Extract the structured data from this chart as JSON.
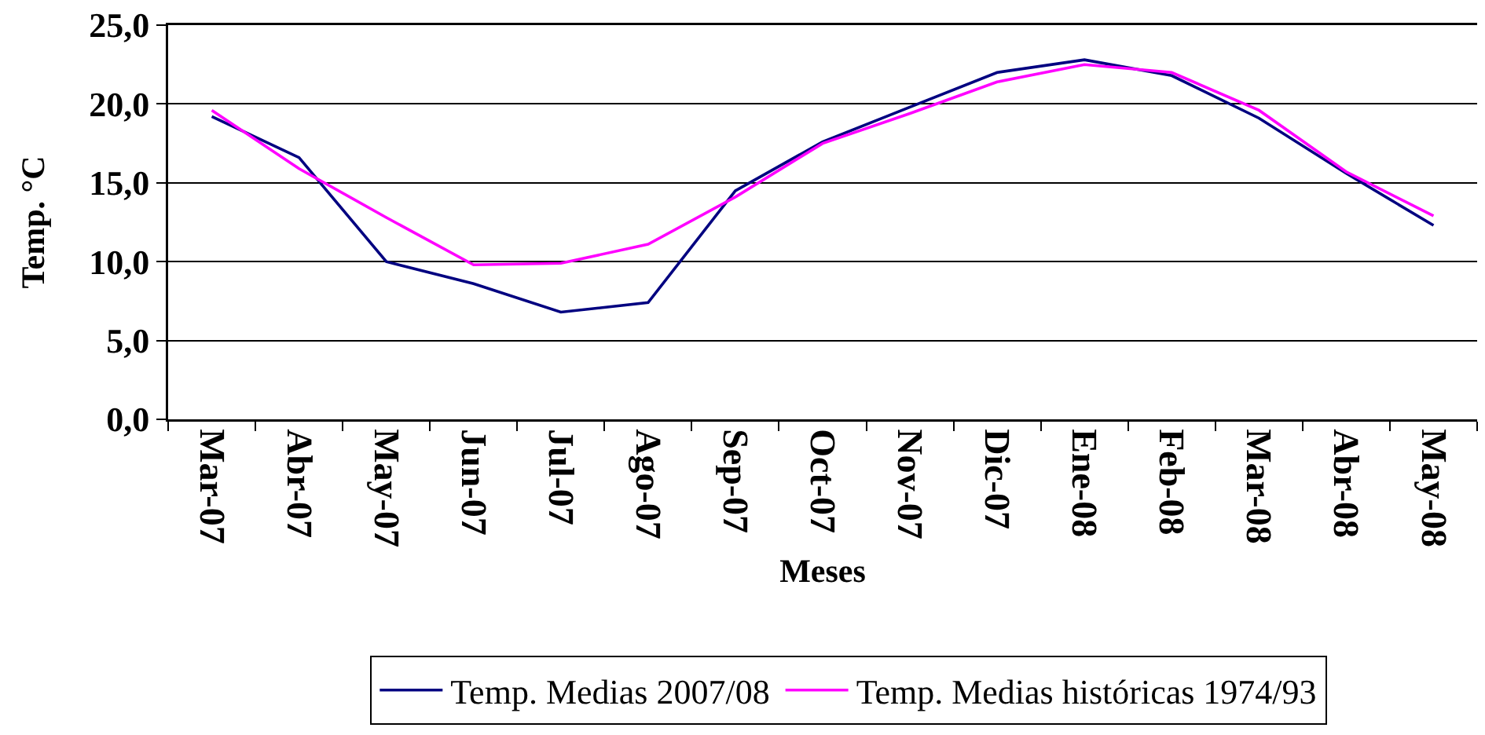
{
  "chart_data": {
    "type": "line",
    "xlabel": "Meses",
    "ylabel": "Temp. °C",
    "categories": [
      "Mar-07",
      "Abr-07",
      "May-07",
      "Jun-07",
      "Jul-07",
      "Ago-07",
      "Sep-07",
      "Oct-07",
      "Nov-07",
      "Dic-07",
      "Ene-08",
      "Feb-08",
      "Mar-08",
      "Abr-08",
      "May-08"
    ],
    "series": [
      {
        "name": "Temp. Medias 2007/08",
        "color": "#000080",
        "values": [
          19.2,
          16.6,
          10.0,
          8.6,
          6.8,
          7.4,
          14.5,
          17.6,
          19.8,
          22.0,
          22.8,
          21.8,
          19.1,
          15.6,
          12.3
        ]
      },
      {
        "name": "Temp. Medias históricas 1974/93",
        "color": "#ff00ff",
        "values": [
          19.6,
          15.9,
          12.8,
          9.8,
          9.9,
          11.1,
          14.1,
          17.5,
          19.4,
          21.4,
          22.5,
          22.0,
          19.6,
          15.7,
          12.9
        ]
      }
    ],
    "ylim": [
      0,
      25
    ],
    "yticks": [
      {
        "value": 0,
        "label": "0,0"
      },
      {
        "value": 5,
        "label": "5,0"
      },
      {
        "value": 10,
        "label": "10,0"
      },
      {
        "value": 15,
        "label": "15,0"
      },
      {
        "value": 20,
        "label": "20,0"
      },
      {
        "value": 25,
        "label": "25,0"
      }
    ],
    "grid": "y",
    "legend": "bottom"
  }
}
